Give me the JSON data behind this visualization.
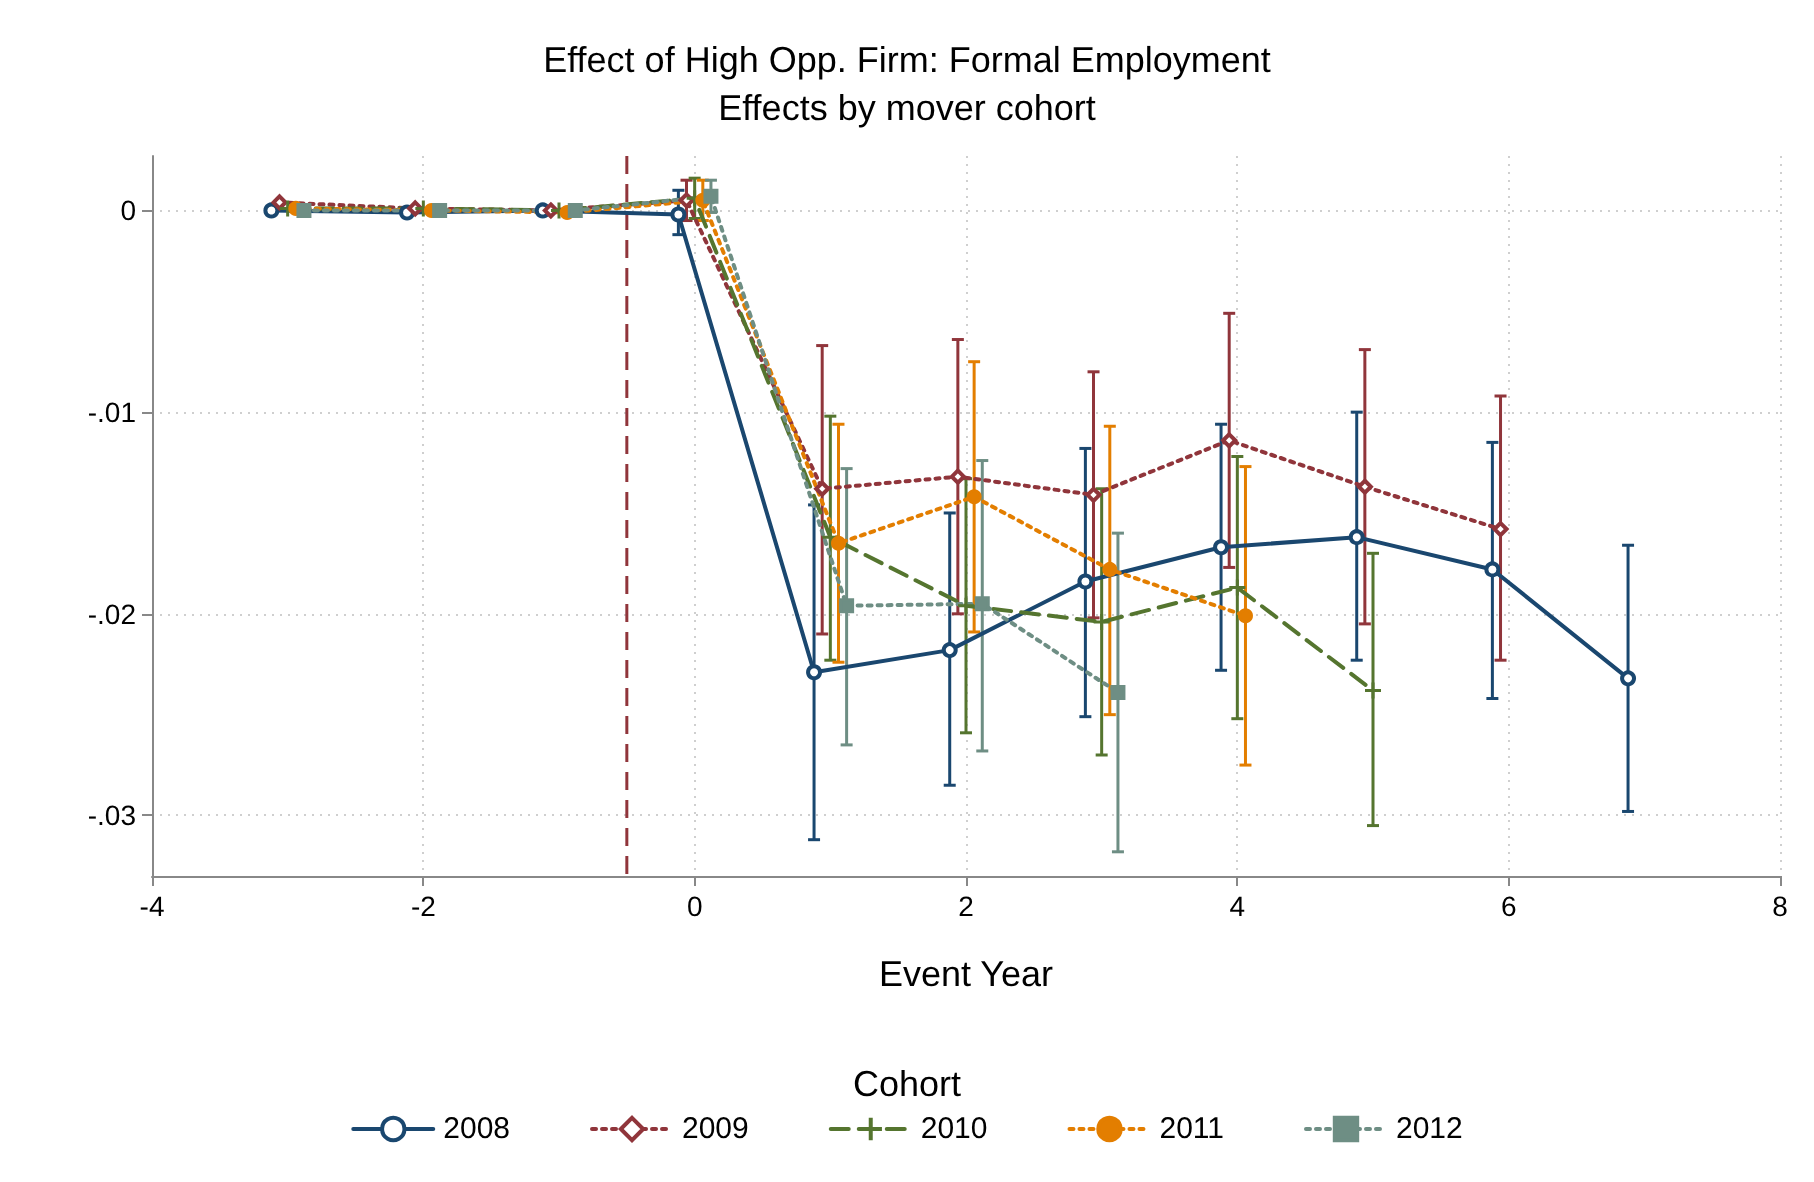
{
  "chart_data": {
    "type": "line",
    "title": "Effect of High Opp. Firm: Formal Employment",
    "subtitle": "Effects by mover cohort",
    "xlabel": "Event Year",
    "legend_title": "Cohort",
    "legend": "bottom",
    "grid": true,
    "xlim": [
      -4,
      8
    ],
    "xticks": [
      -4,
      -2,
      0,
      2,
      4,
      6,
      8
    ],
    "ylim": [
      -0.033,
      0.0027
    ],
    "yticks": [
      {
        "value": 0,
        "label": "0"
      },
      {
        "value": -0.01,
        "label": "-.01"
      },
      {
        "value": -0.02,
        "label": "-.02"
      },
      {
        "value": -0.03,
        "label": "-.03"
      }
    ],
    "ref_lines": [
      {
        "axis": "x",
        "value": -0.5,
        "label": null,
        "color": "#90353b",
        "line_style": "dashed"
      }
    ],
    "series": [
      {
        "name": "2008",
        "color": "#1a476f",
        "marker": "circle",
        "line_style": "solid",
        "x": [
          -3.12,
          -2.12,
          -1.12,
          -0.12,
          0.88,
          1.88,
          2.88,
          3.88,
          4.88,
          5.88,
          6.88
        ],
        "values": [
          0,
          -0.0001,
          0,
          -0.0002,
          -0.0229,
          -0.0218,
          -0.0184,
          -0.0167,
          -0.0162,
          -0.0178,
          -0.0232
        ],
        "errors": [
          null,
          null,
          null,
          [
            -0.0012,
            0.001
          ],
          [
            -0.0312,
            -0.0146
          ],
          [
            -0.0285,
            -0.015
          ],
          [
            -0.0251,
            -0.0118
          ],
          [
            -0.0228,
            -0.0106
          ],
          [
            -0.0223,
            -0.01
          ],
          [
            -0.0242,
            -0.0115
          ],
          [
            -0.0298,
            -0.0166
          ]
        ]
      },
      {
        "name": "2009",
        "color": "#90353b",
        "marker": "diamond",
        "line_style": "dotted",
        "x": [
          -3.06,
          -2.06,
          -1.06,
          -0.06,
          0.94,
          1.94,
          2.94,
          3.94,
          4.94,
          5.94
        ],
        "values": [
          0.0004,
          0.0001,
          0,
          0.0005,
          -0.0138,
          -0.0132,
          -0.0141,
          -0.0114,
          -0.0137,
          -0.0158
        ],
        "errors": [
          null,
          null,
          null,
          [
            -0.0005,
            0.0015
          ],
          [
            -0.021,
            -0.0067
          ],
          [
            -0.02,
            -0.0064
          ],
          [
            -0.0202,
            -0.008
          ],
          [
            -0.0177,
            -0.0051
          ],
          [
            -0.0205,
            -0.0069
          ],
          [
            -0.0223,
            -0.0092
          ]
        ]
      },
      {
        "name": "2010",
        "color": "#55752f",
        "marker": "cross",
        "line_style": "dashed",
        "x": [
          -3,
          -2,
          -1,
          0,
          1,
          2,
          3,
          4,
          5
        ],
        "values": [
          0.0001,
          0.0001,
          0,
          0.0006,
          -0.0162,
          -0.0196,
          -0.0204,
          -0.0187,
          -0.0238
        ],
        "errors": [
          null,
          null,
          null,
          [
            -0.0004,
            0.0016
          ],
          [
            -0.0223,
            -0.0102
          ],
          [
            -0.0259,
            -0.0133
          ],
          [
            -0.027,
            -0.0138
          ],
          [
            -0.0252,
            -0.0122
          ],
          [
            -0.0305,
            -0.017
          ]
        ]
      },
      {
        "name": "2011",
        "color": "#e37e00",
        "marker": "circle",
        "line_style": "dotted",
        "x": [
          -2.94,
          -1.94,
          -0.94,
          0.06,
          1.06,
          2.06,
          3.06,
          4.06
        ],
        "values": [
          0.0001,
          0,
          -0.0001,
          0.0005,
          -0.0165,
          -0.0142,
          -0.0178,
          -0.0201
        ],
        "errors": [
          null,
          null,
          null,
          [
            -0.0005,
            0.0015
          ],
          [
            -0.0224,
            -0.0106
          ],
          [
            -0.0209,
            -0.0075
          ],
          [
            -0.025,
            -0.0107
          ],
          [
            -0.0275,
            -0.0127
          ]
        ]
      },
      {
        "name": "2012",
        "color": "#6e8e84",
        "marker": "square",
        "line_style": "dotted",
        "x": [
          -2.88,
          -1.88,
          -0.88,
          0.12,
          1.12,
          2.12,
          3.12
        ],
        "values": [
          0,
          0,
          0,
          0.0007,
          -0.0196,
          -0.0195,
          -0.0239
        ],
        "errors": [
          null,
          null,
          null,
          [
            -0.0001,
            0.0015
          ],
          [
            -0.0265,
            -0.0128
          ],
          [
            -0.0268,
            -0.0124
          ],
          [
            -0.0318,
            -0.016
          ]
        ]
      }
    ]
  }
}
